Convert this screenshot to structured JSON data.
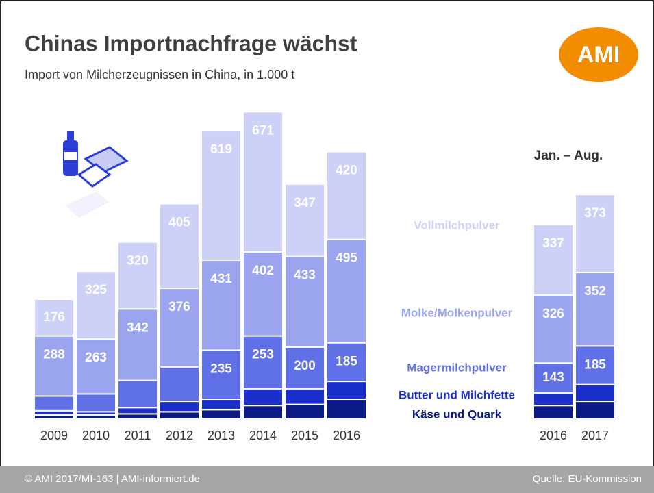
{
  "title": "Chinas Importnachfrage wächst",
  "subtitle": "Import von Milcherzeugnissen in China, in 1.000 t",
  "logo": "AMI",
  "footer": {
    "left": "© AMI 2017/MI-163 | AMI-informiert.de",
    "right": "Quelle: EU-Kommission"
  },
  "chart_data": [
    {
      "type": "bar",
      "stacked": true,
      "categories": [
        "2009",
        "2010",
        "2011",
        "2012",
        "2013",
        "2014",
        "2015",
        "2016"
      ],
      "series": [
        {
          "name": "Käse und Quark",
          "color": "#0c1a86",
          "values": [
            20,
            20,
            25,
            35,
            45,
            65,
            70,
            95
          ],
          "value_labels": [
            null,
            null,
            null,
            null,
            null,
            null,
            null,
            null
          ]
        },
        {
          "name": "Butter und Milchfette",
          "color": "#1b2fcb",
          "values": [
            20,
            15,
            30,
            50,
            50,
            80,
            75,
            85
          ],
          "value_labels": [
            null,
            null,
            null,
            null,
            null,
            null,
            null,
            null
          ]
        },
        {
          "name": "Magermilchpulver",
          "color": "#6070e6",
          "values": [
            70,
            85,
            130,
            165,
            235,
            253,
            200,
            185
          ],
          "value_labels": [
            null,
            null,
            null,
            null,
            "235",
            "253",
            "200",
            "185"
          ]
        },
        {
          "name": "Molke/Molkenpulver",
          "color": "#9aa4ef",
          "values": [
            288,
            263,
            342,
            376,
            431,
            402,
            433,
            495
          ],
          "value_labels": [
            "288",
            "263",
            "342",
            "376",
            "431",
            "402",
            "433",
            "495"
          ]
        },
        {
          "name": "Vollmilchpulver",
          "color": "#cdd1f7",
          "values": [
            176,
            325,
            320,
            405,
            619,
            671,
            347,
            420
          ],
          "value_labels": [
            "176",
            "325",
            "320",
            "405",
            "619",
            "671",
            "347",
            "420"
          ]
        }
      ]
    },
    {
      "type": "bar",
      "stacked": true,
      "annotation": "Jan. – Aug.",
      "categories": [
        "2016",
        "2017"
      ],
      "series": [
        {
          "color": "#0c1a86",
          "values": [
            65,
            85
          ],
          "value_labels": [
            null,
            null
          ]
        },
        {
          "color": "#1b2fcb",
          "values": [
            60,
            80
          ],
          "value_labels": [
            null,
            null
          ]
        },
        {
          "color": "#6070e6",
          "values": [
            143,
            185
          ],
          "value_labels": [
            "143",
            "185"
          ]
        },
        {
          "color": "#9aa4ef",
          "values": [
            326,
            352
          ],
          "value_labels": [
            "326",
            "352"
          ]
        },
        {
          "color": "#cdd1f7",
          "values": [
            337,
            373
          ],
          "value_labels": [
            "337",
            "373"
          ]
        }
      ]
    }
  ]
}
